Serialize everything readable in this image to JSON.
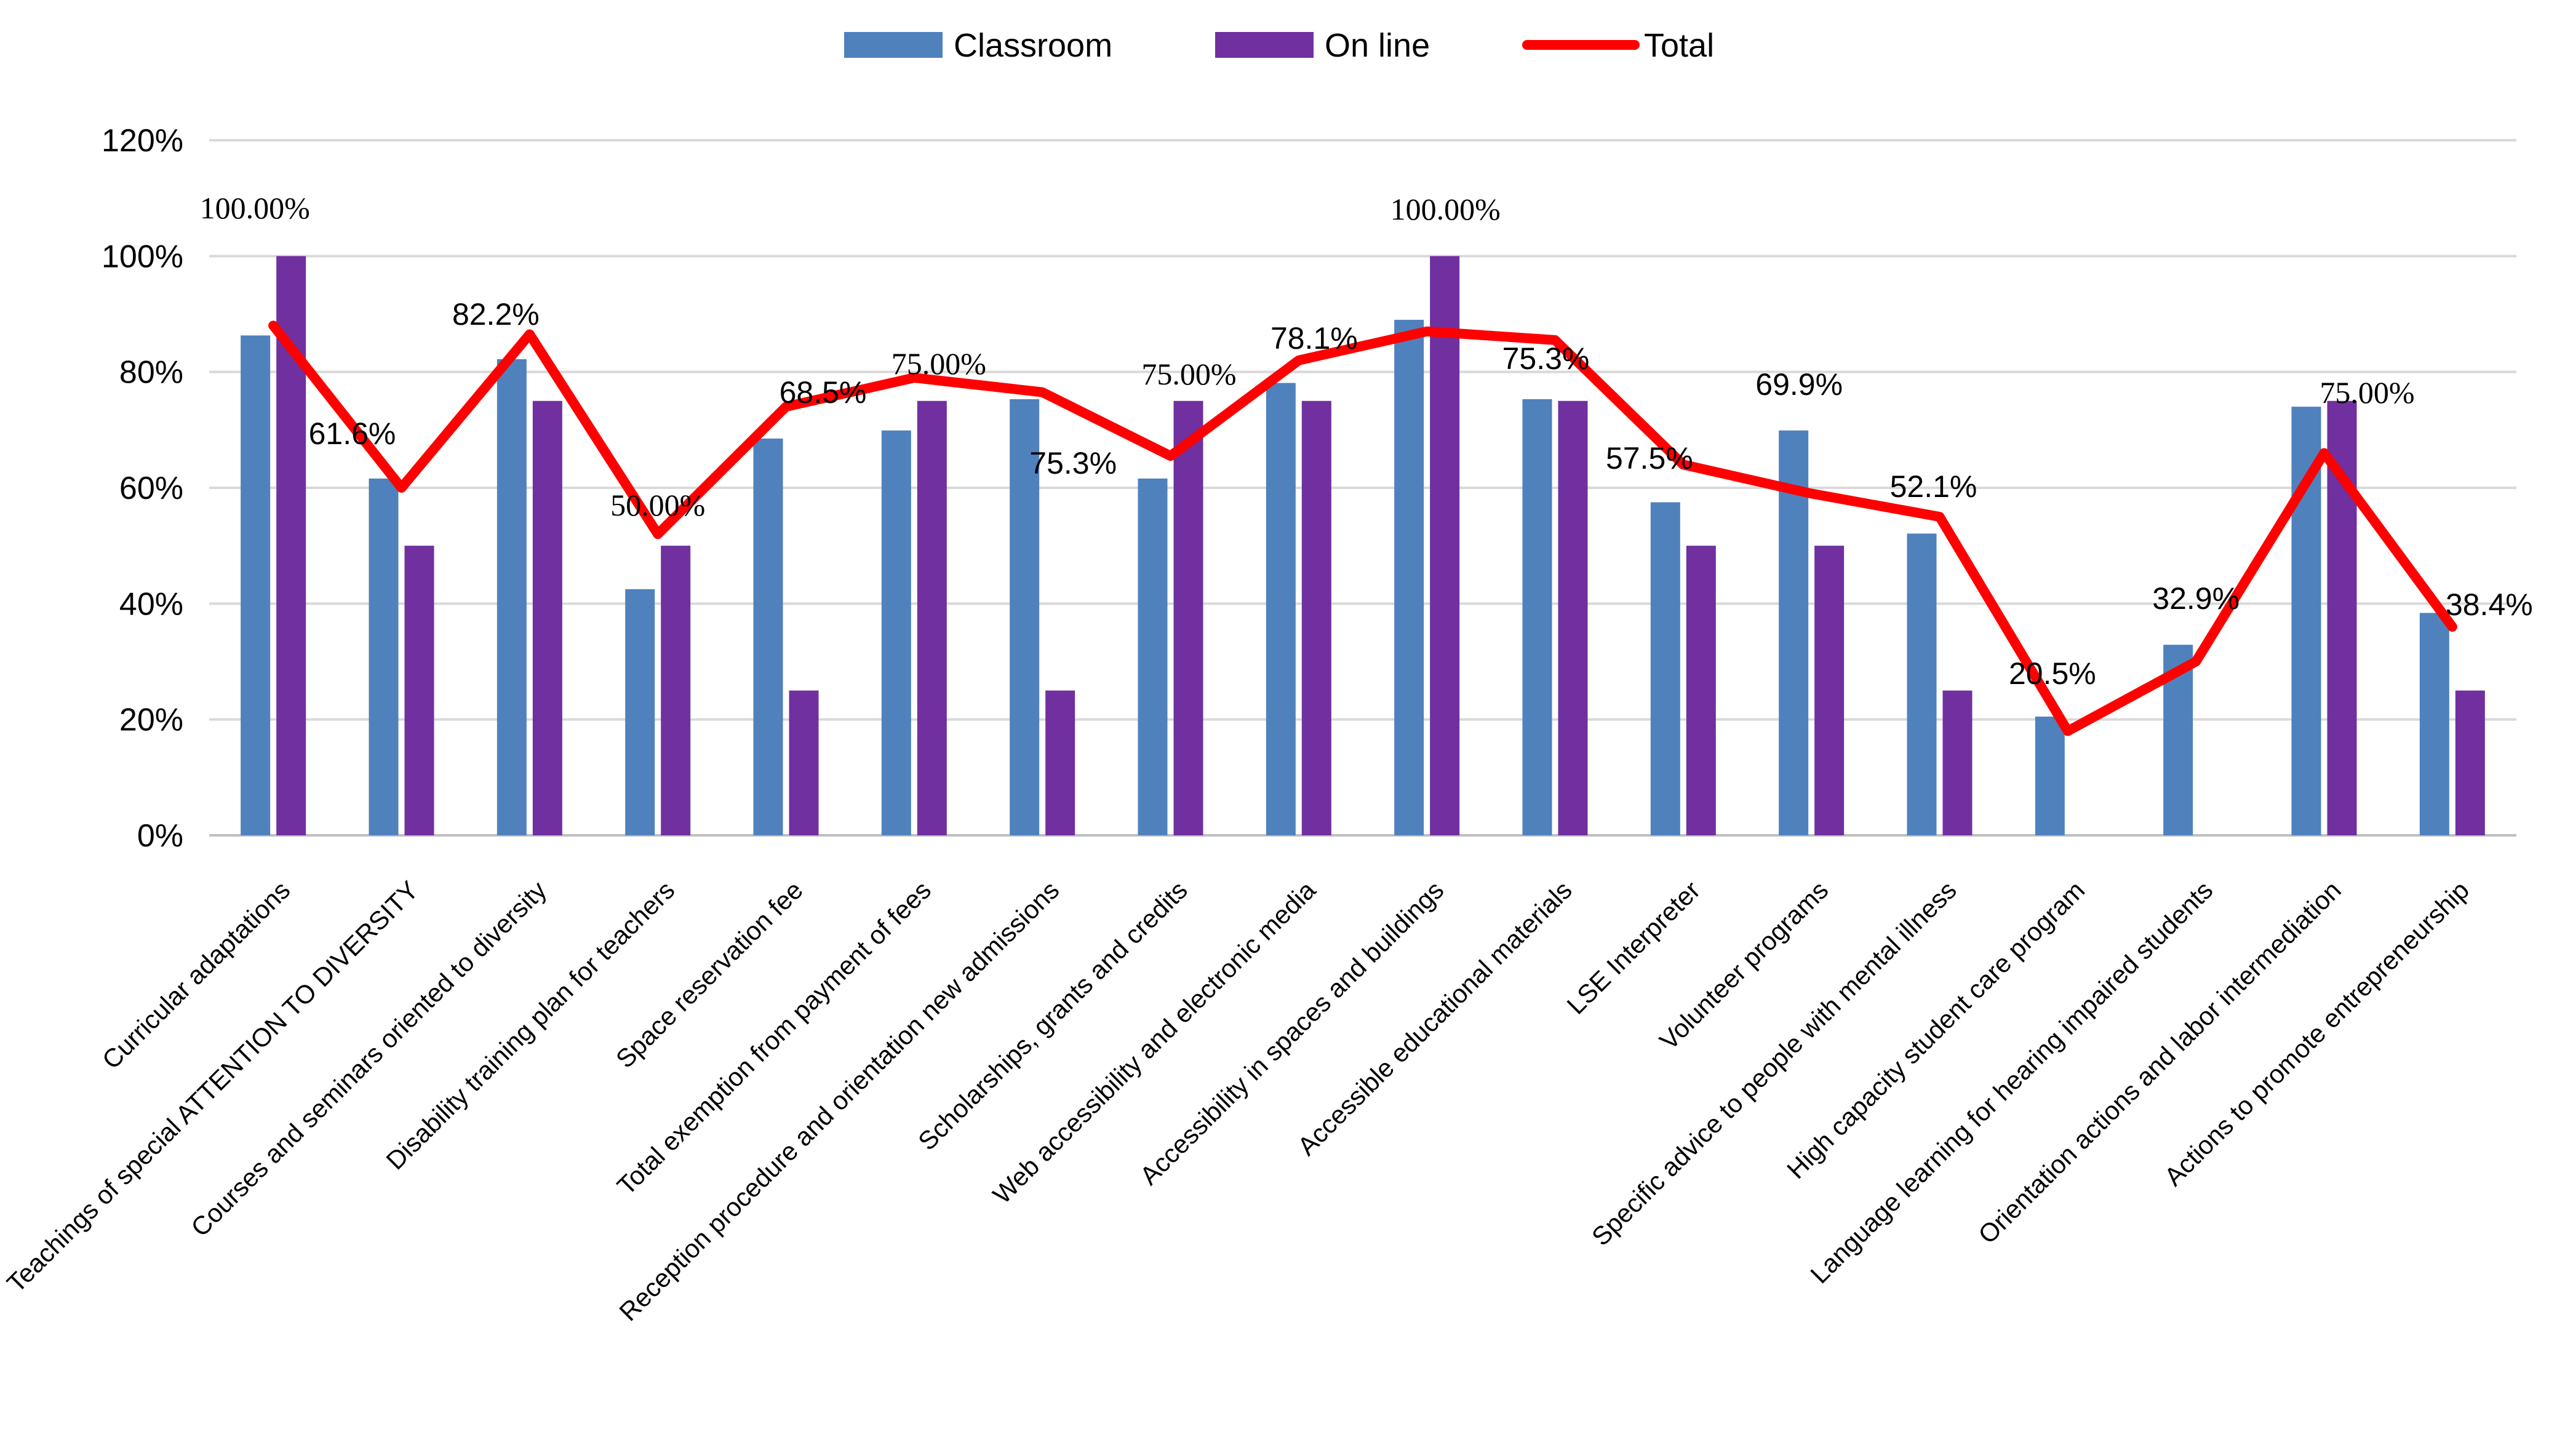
{
  "chart_data": {
    "type": "bar",
    "title": "",
    "xlabel": "",
    "ylabel": "",
    "ylim": [
      0,
      1.2
    ],
    "y_ticks": [
      0,
      0.2,
      0.4,
      0.6,
      0.8,
      1.0,
      1.2
    ],
    "y_tick_labels": [
      "0%",
      "20%",
      "40%",
      "60%",
      "80%",
      "100%",
      "120%"
    ],
    "grid": "horizontal",
    "legend_position": "top-center",
    "categories": [
      "Curricular adaptations",
      "Teachings of special ATTENTION TO DIVERSITY",
      "Courses and seminars oriented to diversity",
      "Disability training plan for teachers",
      "Space reservation fee",
      "Total exemption from payment of fees",
      "Reception procedure and orientation new admissions",
      "Scholarships, grants and credits",
      "Web accessibility and electronic media",
      "Accessibility in spaces and buildings",
      "Accessible educational materials",
      "LSE Interpreter",
      "Volunteer programs",
      "Specific advice to people with mental illness",
      "High capacity student care program",
      "Language learning for hearing impaired students",
      "Orientation actions and labor intermediation",
      "Actions to promote entrepreneurship"
    ],
    "series": [
      {
        "name": "Classroom",
        "kind": "bar",
        "color": "#4F81BD",
        "values": [
          0.863,
          0.616,
          0.822,
          0.425,
          0.685,
          0.699,
          0.753,
          0.616,
          0.781,
          0.89,
          0.753,
          0.575,
          0.699,
          0.521,
          0.205,
          0.329,
          0.74,
          0.384
        ]
      },
      {
        "name": "On line",
        "kind": "bar",
        "color": "#7030A0",
        "values": [
          1.0,
          0.5,
          0.75,
          0.5,
          0.25,
          0.75,
          0.25,
          0.75,
          0.75,
          1.0,
          0.75,
          0.5,
          0.5,
          0.25,
          0.0,
          0.0,
          0.75,
          0.25
        ]
      },
      {
        "name": "Total",
        "kind": "line",
        "color": "#FF0000",
        "values": [
          0.88,
          0.6,
          0.865,
          0.52,
          0.74,
          0.79,
          0.765,
          0.655,
          0.82,
          0.87,
          0.855,
          0.64,
          0.59,
          0.55,
          0.18,
          0.3,
          0.66,
          0.36
        ]
      }
    ],
    "data_labels": [
      {
        "text": "100.00%",
        "category": 0,
        "style": "serif"
      },
      {
        "text": "61.6%",
        "category": 1,
        "style": "sans"
      },
      {
        "text": "82.2%",
        "category": 2,
        "style": "sans"
      },
      {
        "text": "50.00%",
        "category": 3,
        "style": "serif"
      },
      {
        "text": "68.5%",
        "category": 4,
        "style": "sans"
      },
      {
        "text": "75.00%",
        "category": 5,
        "style": "serif"
      },
      {
        "text": "75.3%",
        "category": 6,
        "style": "sans"
      },
      {
        "text": "75.00%",
        "category": 7,
        "style": "serif"
      },
      {
        "text": "78.1%",
        "category": 8,
        "style": "sans"
      },
      {
        "text": "100.00%",
        "category": 9,
        "style": "serif"
      },
      {
        "text": "75.3%",
        "category": 10,
        "style": "sans"
      },
      {
        "text": "57.5%",
        "category": 11,
        "style": "sans"
      },
      {
        "text": "69.9%",
        "category": 12,
        "style": "sans"
      },
      {
        "text": "52.1%",
        "category": 13,
        "style": "sans"
      },
      {
        "text": "20.5%",
        "category": 14,
        "style": "sans"
      },
      {
        "text": "32.9%",
        "category": 15,
        "style": "sans"
      },
      {
        "text": "75.00%",
        "category": 16,
        "style": "serif"
      },
      {
        "text": "38.4%",
        "category": 17,
        "style": "sans"
      }
    ]
  }
}
